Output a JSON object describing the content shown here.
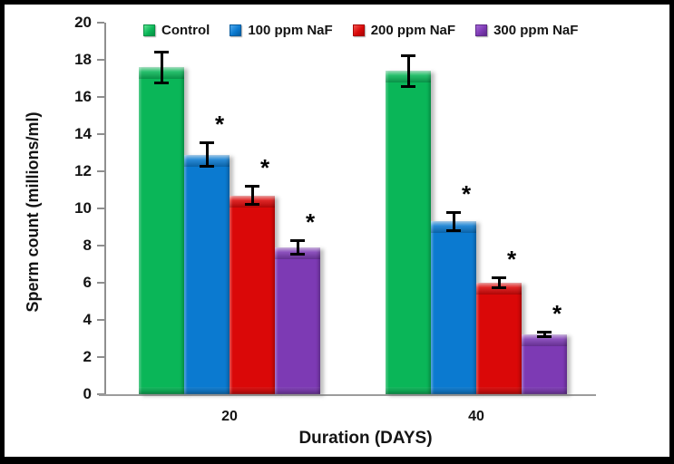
{
  "chart_data": {
    "type": "bar",
    "title": "",
    "xlabel": "Duration (DAYS)",
    "ylabel": "Sperm count (millions/ml)",
    "categories": [
      "20",
      "40"
    ],
    "ylim": [
      0,
      20
    ],
    "ytick_step": 2,
    "yticks": [
      0,
      2,
      4,
      6,
      8,
      10,
      12,
      14,
      16,
      18,
      20
    ],
    "grid": false,
    "legend_position": "top",
    "sig_marker": "*",
    "axis_color": "#8f8f8f",
    "baseline_color": "#9c9c9c",
    "text_color": "#141414",
    "error_bar_color": "#000000",
    "series": [
      {
        "name": "Control",
        "color": "#0ab658",
        "color_light": "#5fe392",
        "color_dark": "#069044",
        "values": [
          17.6,
          17.4
        ],
        "errors": [
          0.9,
          0.9
        ],
        "significant": [
          false,
          false
        ]
      },
      {
        "name": "100 ppm NaF",
        "color": "#0b7ad0",
        "color_light": "#4fa8ec",
        "color_dark": "#075c9e",
        "values": [
          12.9,
          9.3
        ],
        "errors": [
          0.7,
          0.55
        ],
        "significant": [
          true,
          true
        ]
      },
      {
        "name": "200 ppm NaF",
        "color": "#da0808",
        "color_light": "#f25550",
        "color_dark": "#a80606",
        "values": [
          10.7,
          6.0
        ],
        "errors": [
          0.55,
          0.35
        ],
        "significant": [
          true,
          true
        ]
      },
      {
        "name": "300 ppm NaF",
        "color": "#7d3ab4",
        "color_light": "#a468d6",
        "color_dark": "#5e2a8a",
        "values": [
          7.9,
          3.2
        ],
        "errors": [
          0.45,
          0.2
        ],
        "significant": [
          true,
          true
        ]
      }
    ]
  }
}
